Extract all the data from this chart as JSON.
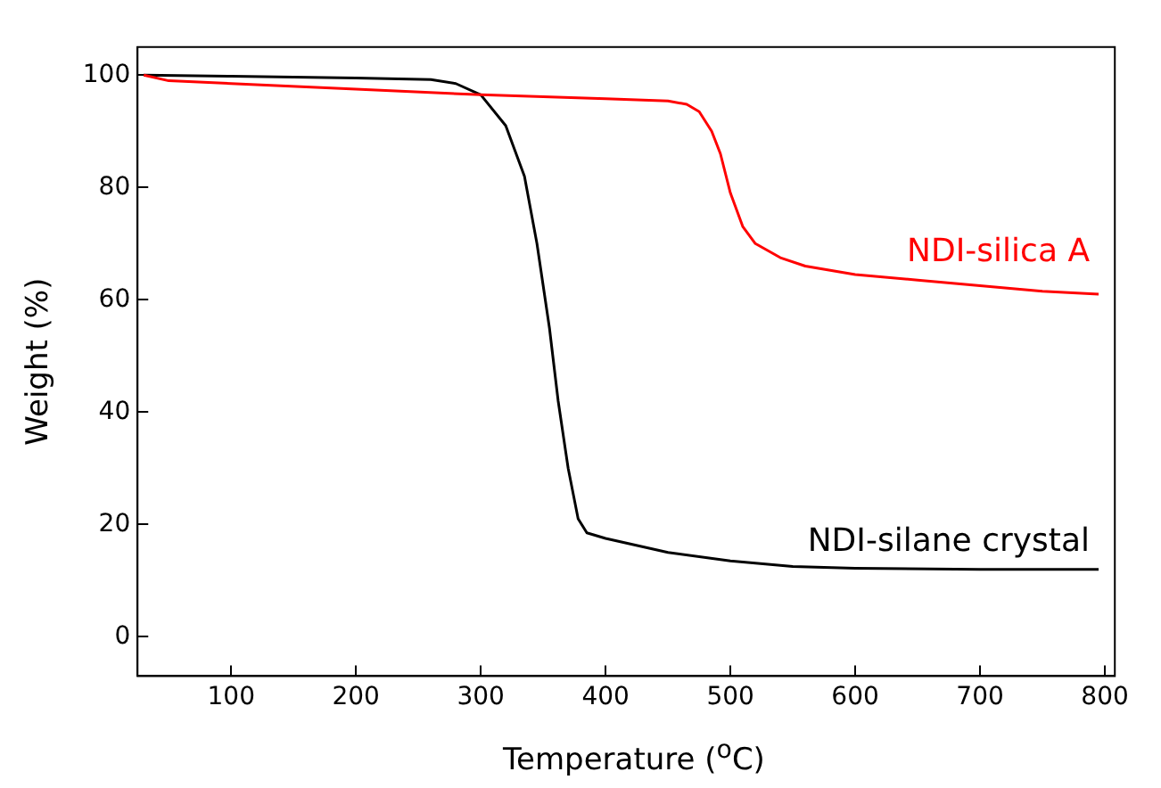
{
  "chart_data": {
    "type": "line",
    "xlabel": "Temperature ($^{o}$C)",
    "ylabel": "Weight (%)",
    "xlim": [
      25,
      808
    ],
    "ylim": [
      -7,
      105
    ],
    "xticks": [
      100,
      200,
      300,
      400,
      500,
      600,
      700,
      800
    ],
    "yticks": [
      0,
      20,
      40,
      60,
      80,
      100
    ],
    "grid": false,
    "legend": false,
    "marker": "none",
    "line_style": "solid",
    "series": [
      {
        "name": "NDI-silica A",
        "color": "#ff0000",
        "x": [
          30,
          50,
          100,
          200,
          300,
          400,
          450,
          465,
          475,
          485,
          492,
          500,
          510,
          520,
          540,
          560,
          600,
          650,
          700,
          750,
          795
        ],
        "values": [
          100,
          99,
          98.5,
          97.5,
          96.5,
          95.8,
          95.4,
          94.8,
          93.5,
          90,
          86,
          79,
          73,
          70,
          67.5,
          66,
          64.5,
          63.5,
          62.5,
          61.5,
          61
        ]
      },
      {
        "name": "NDI-silane crystal",
        "color": "#000000",
        "x": [
          30,
          100,
          200,
          260,
          280,
          300,
          320,
          335,
          345,
          355,
          362,
          370,
          378,
          385,
          400,
          450,
          500,
          550,
          600,
          700,
          795
        ],
        "values": [
          100,
          99.8,
          99.5,
          99.2,
          98.5,
          96.5,
          91,
          82,
          70,
          55,
          42,
          30,
          21,
          18.5,
          17.5,
          15,
          13.5,
          12.5,
          12.2,
          12,
          12
        ]
      }
    ]
  }
}
